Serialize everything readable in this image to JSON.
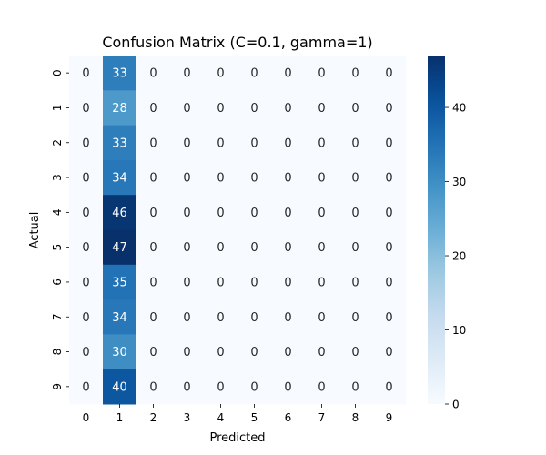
{
  "chart_data": {
    "type": "heatmap",
    "title": "Confusion Matrix (C=0.1, gamma=1)",
    "xlabel": "Predicted",
    "ylabel": "Actual",
    "x_categories": [
      "0",
      "1",
      "2",
      "3",
      "4",
      "5",
      "6",
      "7",
      "8",
      "9"
    ],
    "y_categories": [
      "0",
      "1",
      "2",
      "3",
      "4",
      "5",
      "6",
      "7",
      "8",
      "9"
    ],
    "values": [
      [
        0,
        33,
        0,
        0,
        0,
        0,
        0,
        0,
        0,
        0
      ],
      [
        0,
        28,
        0,
        0,
        0,
        0,
        0,
        0,
        0,
        0
      ],
      [
        0,
        33,
        0,
        0,
        0,
        0,
        0,
        0,
        0,
        0
      ],
      [
        0,
        34,
        0,
        0,
        0,
        0,
        0,
        0,
        0,
        0
      ],
      [
        0,
        46,
        0,
        0,
        0,
        0,
        0,
        0,
        0,
        0
      ],
      [
        0,
        47,
        0,
        0,
        0,
        0,
        0,
        0,
        0,
        0
      ],
      [
        0,
        35,
        0,
        0,
        0,
        0,
        0,
        0,
        0,
        0
      ],
      [
        0,
        34,
        0,
        0,
        0,
        0,
        0,
        0,
        0,
        0
      ],
      [
        0,
        30,
        0,
        0,
        0,
        0,
        0,
        0,
        0,
        0
      ],
      [
        0,
        40,
        0,
        0,
        0,
        0,
        0,
        0,
        0,
        0
      ]
    ],
    "colorscale": "Blues",
    "vmin": 0,
    "vmax": 47,
    "colorbar_ticks": [
      "0",
      "10",
      "20",
      "30",
      "40"
    ],
    "grid": false,
    "legend": "colorbar-right"
  }
}
